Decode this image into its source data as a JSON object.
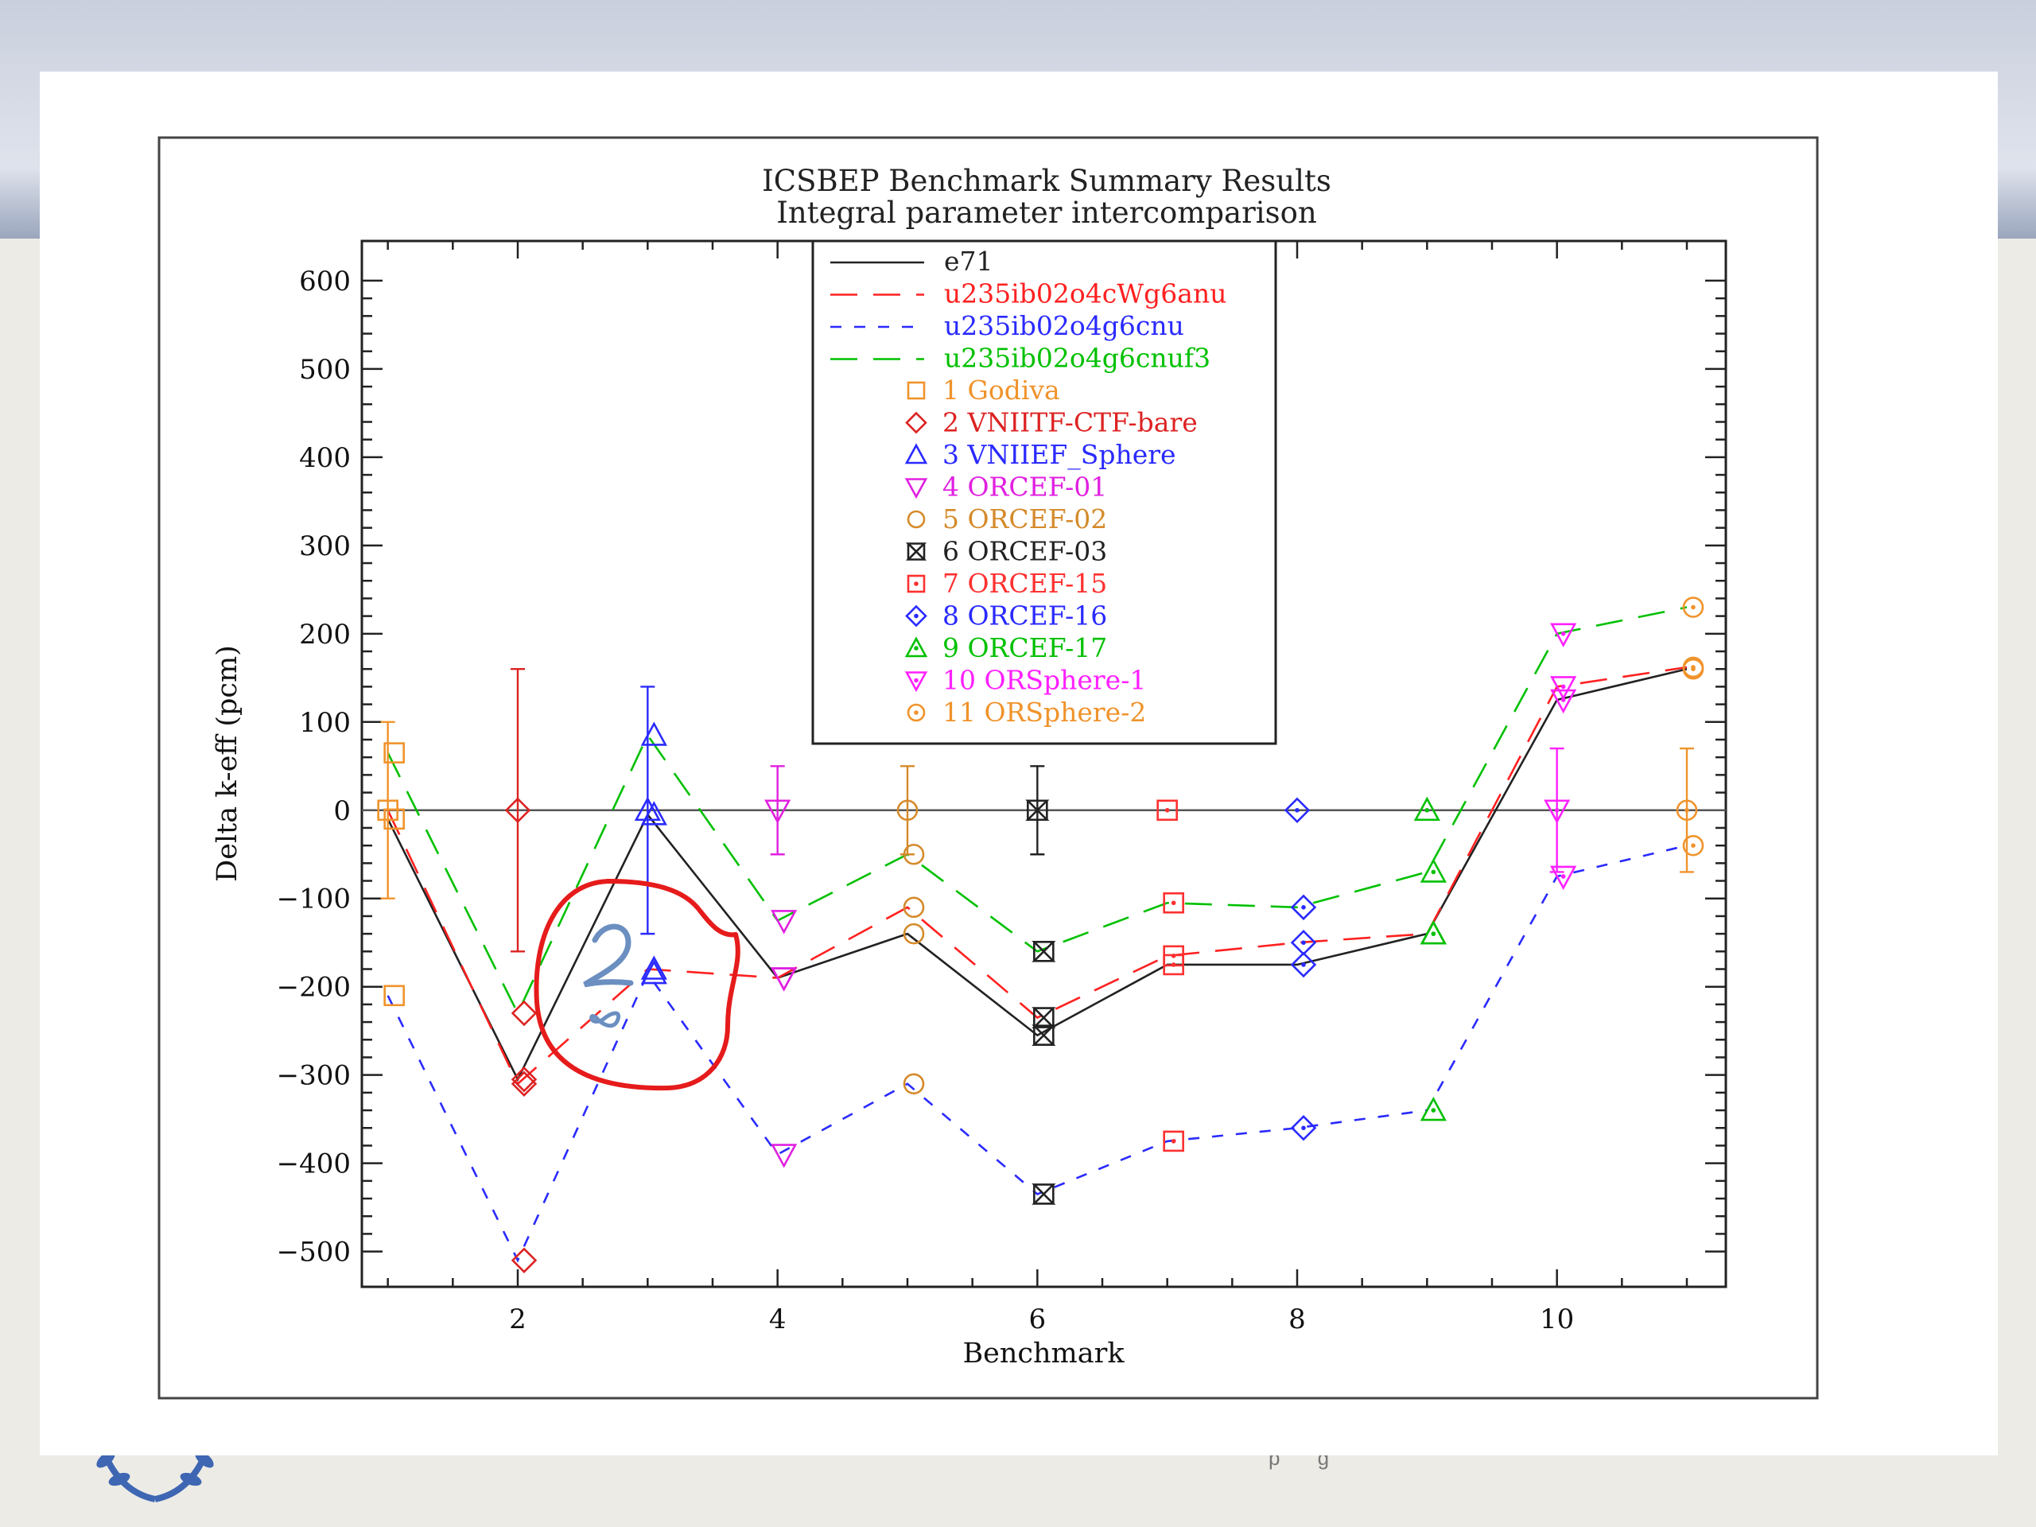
{
  "slide": {
    "footer_fragment": "p g"
  },
  "annotation": {
    "handwritten_text": "2 ∞",
    "circle_color": "#e61b1b",
    "ink_color": "#6b8fc0"
  },
  "chart_data": {
    "type": "line",
    "title": "ICSBEP Benchmark Summary Results",
    "subtitle": "Integral parameter intercomparison",
    "xlabel": "Benchmark",
    "ylabel": "Delta k-eff (pcm)",
    "xlim": [
      0.8,
      11.3
    ],
    "ylim": [
      -540,
      645
    ],
    "xticks": [
      2,
      4,
      6,
      8,
      10
    ],
    "yticks": [
      -500,
      -400,
      -300,
      -200,
      -100,
      0,
      100,
      200,
      300,
      400,
      500,
      600
    ],
    "grid": false,
    "legend_position": "top-center",
    "reference_line": {
      "name": "e71",
      "y": 0,
      "color": "#555555"
    },
    "series": [
      {
        "name": "e71",
        "color": "#222222",
        "style": "solid",
        "x": [
          1,
          2,
          3,
          4,
          5,
          6,
          7,
          8,
          9,
          10,
          11
        ],
        "y": [
          -10,
          -305,
          -5,
          -190,
          -140,
          -255,
          -175,
          -175,
          -140,
          125,
          160
        ]
      },
      {
        "name": "u235ib02o4cWg6anu",
        "color": "#ff2020",
        "style": "long-dash",
        "x": [
          1,
          2,
          3,
          4,
          5,
          6,
          7,
          8,
          9,
          10,
          11
        ],
        "y": [
          0,
          -310,
          -180,
          -190,
          -110,
          -235,
          -165,
          -150,
          -140,
          140,
          162
        ]
      },
      {
        "name": "u235ib02o4g6cnu",
        "color": "#2a2aff",
        "style": "short-dash",
        "x": [
          1,
          2,
          3,
          4,
          5,
          6,
          7,
          8,
          9,
          10,
          11
        ],
        "y": [
          -210,
          -510,
          -185,
          -390,
          -310,
          -435,
          -375,
          -360,
          -340,
          -75,
          -40
        ]
      },
      {
        "name": "u235ib02o4g6cnuf3",
        "color": "#00c000",
        "style": "long-dash",
        "x": [
          1,
          2,
          3,
          4,
          5,
          6,
          7,
          8,
          9,
          10,
          11
        ],
        "y": [
          65,
          -230,
          85,
          -125,
          -50,
          -160,
          -105,
          -110,
          -70,
          200,
          230
        ]
      }
    ],
    "benchmarks": [
      {
        "name": "1 Godiva",
        "color": "#f0932b",
        "marker": "square",
        "x": 1,
        "y": 0,
        "err": 100
      },
      {
        "name": "2 VNIITF-CTF-bare",
        "color": "#dd2222",
        "marker": "diamond",
        "x": 2,
        "y": 0,
        "err": 160
      },
      {
        "name": "3 VNIIEF_Sphere",
        "color": "#2a2aff",
        "marker": "triangle-up",
        "x": 3,
        "y": 0,
        "err": 140
      },
      {
        "name": "4 ORCEF-01",
        "color": "#e020e0",
        "marker": "triangle-down",
        "x": 4,
        "y": 0,
        "err": 50
      },
      {
        "name": "5 ORCEF-02",
        "color": "#d58a2a",
        "marker": "circle",
        "x": 5,
        "y": 0,
        "err": 50
      },
      {
        "name": "6 ORCEF-03",
        "color": "#222222",
        "marker": "hourglass",
        "x": 6,
        "y": 0,
        "err": 50
      },
      {
        "name": "7 ORCEF-15",
        "color": "#ff3030",
        "marker": "dot-square",
        "x": 7,
        "y": 0,
        "err": 0
      },
      {
        "name": "8 ORCEF-16",
        "color": "#2a2aff",
        "marker": "dot-diamond",
        "x": 8,
        "y": 0,
        "err": 0
      },
      {
        "name": "9 ORCEF-17",
        "color": "#00c000",
        "marker": "dot-triangle-up",
        "x": 9,
        "y": 0,
        "err": 0
      },
      {
        "name": "10 ORSphere-1",
        "color": "#ff20ff",
        "marker": "dot-triangle-down",
        "x": 10,
        "y": 0,
        "err": 70
      },
      {
        "name": "11 ORSphere-2",
        "color": "#f0932b",
        "marker": "dot-circle",
        "x": 11,
        "y": 0,
        "err": 70
      }
    ]
  }
}
